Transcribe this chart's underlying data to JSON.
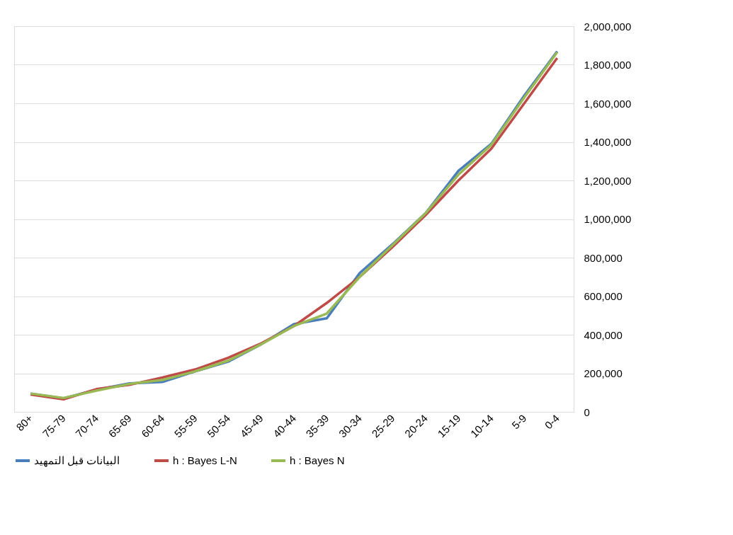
{
  "chart_data": {
    "type": "line",
    "categories": [
      "80+",
      "75-79",
      "70-74",
      "65-69",
      "60-64",
      "55-59",
      "50-54",
      "45-49",
      "40-44",
      "35-39",
      "30-34",
      "25-29",
      "20-24",
      "15-19",
      "10-14",
      "5-9",
      "0-4"
    ],
    "series": [
      {
        "name": "البيانات قبل التمهيد",
        "color": "#4a7ebb",
        "values": [
          95000,
          70000,
          115000,
          148000,
          155000,
          210000,
          260000,
          350000,
          455000,
          485000,
          720000,
          870000,
          1030000,
          1250000,
          1390000,
          1640000,
          1870000
        ]
      },
      {
        "name": "h : Bayes L-N",
        "color": "#be4b48",
        "values": [
          90000,
          65000,
          118000,
          140000,
          178000,
          220000,
          280000,
          355000,
          445000,
          565000,
          700000,
          855000,
          1020000,
          1200000,
          1365000,
          1600000,
          1835000
        ]
      },
      {
        "name": "h : Bayes N",
        "color": "#98b954",
        "values": [
          95000,
          72000,
          110000,
          145000,
          165000,
          210000,
          265000,
          350000,
          445000,
          510000,
          700000,
          865000,
          1030000,
          1230000,
          1385000,
          1630000,
          1865000
        ]
      }
    ],
    "ylim": [
      0,
      2000000
    ],
    "yticks": [
      0,
      {
        "value": 200000,
        "label": "200,000"
      },
      {
        "value": 400000,
        "label": "400,000"
      },
      {
        "value": 600000,
        "label": "600,000"
      },
      {
        "value": 800000,
        "label": "800,000"
      },
      {
        "value": 1000000,
        "label": "1,000,000"
      },
      {
        "value": 1200000,
        "label": "1,200,000"
      },
      {
        "value": 1400000,
        "label": "1,400,000"
      },
      {
        "value": 1600000,
        "label": "1,600,000"
      },
      {
        "value": 1800000,
        "label": "1,800,000"
      },
      {
        "value": 2000000,
        "label": "2,000,000"
      }
    ],
    "grid": "y",
    "legend": "bottom",
    "marker": "none",
    "line_style": "solid"
  }
}
